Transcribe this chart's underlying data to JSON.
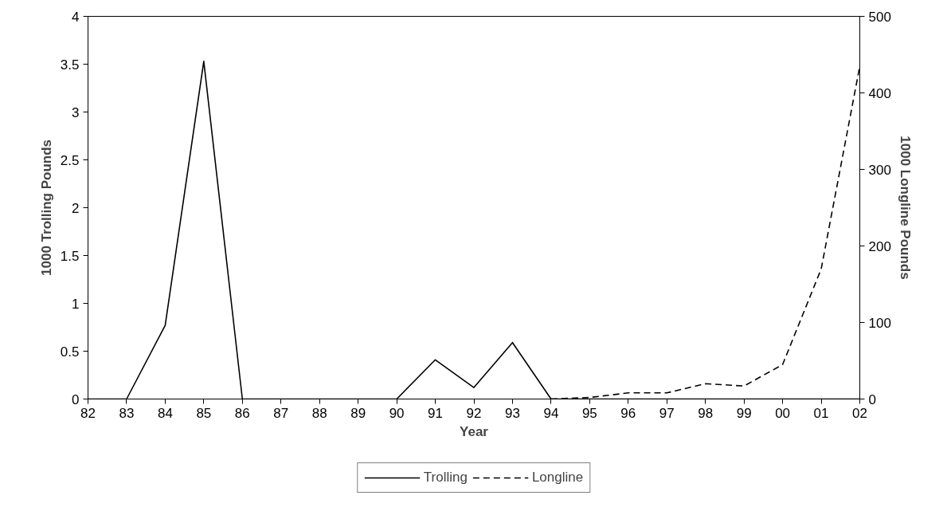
{
  "chart_data": {
    "type": "line",
    "xlabel": "Year",
    "ylabel": "1000 Trolling Pounds",
    "y2label": "1000 Longline Pounds",
    "categories": [
      "82",
      "83",
      "84",
      "85",
      "86",
      "87",
      "88",
      "89",
      "90",
      "91",
      "92",
      "93",
      "94",
      "95",
      "96",
      "97",
      "98",
      "99",
      "00",
      "01",
      "02"
    ],
    "series": [
      {
        "name": "Trolling",
        "color": "#000000",
        "line_style": "solid",
        "values": [
          0,
          0,
          0.77,
          3.53,
          0,
          0,
          0,
          0,
          0,
          0.41,
          0.12,
          0.59,
          0,
          0,
          0,
          0,
          0,
          0,
          0,
          0,
          0
        ]
      },
      {
        "name": "Longline",
        "color": "#000000",
        "line_style": "dashed",
        "axis": "y2",
        "values": [
          null,
          null,
          null,
          null,
          null,
          null,
          null,
          null,
          null,
          null,
          null,
          null,
          0,
          2,
          8,
          8,
          20,
          17,
          45,
          170,
          435
        ]
      }
    ],
    "ylim": [
      0,
      4
    ],
    "yticks": [
      0,
      0.5,
      1,
      1.5,
      2,
      2.5,
      3,
      3.5,
      4
    ],
    "y2lim": [
      0,
      500
    ],
    "y2ticks": [
      0,
      100,
      200,
      300,
      400,
      500
    ],
    "grid": false,
    "legend": "bottom",
    "marker": "none"
  }
}
